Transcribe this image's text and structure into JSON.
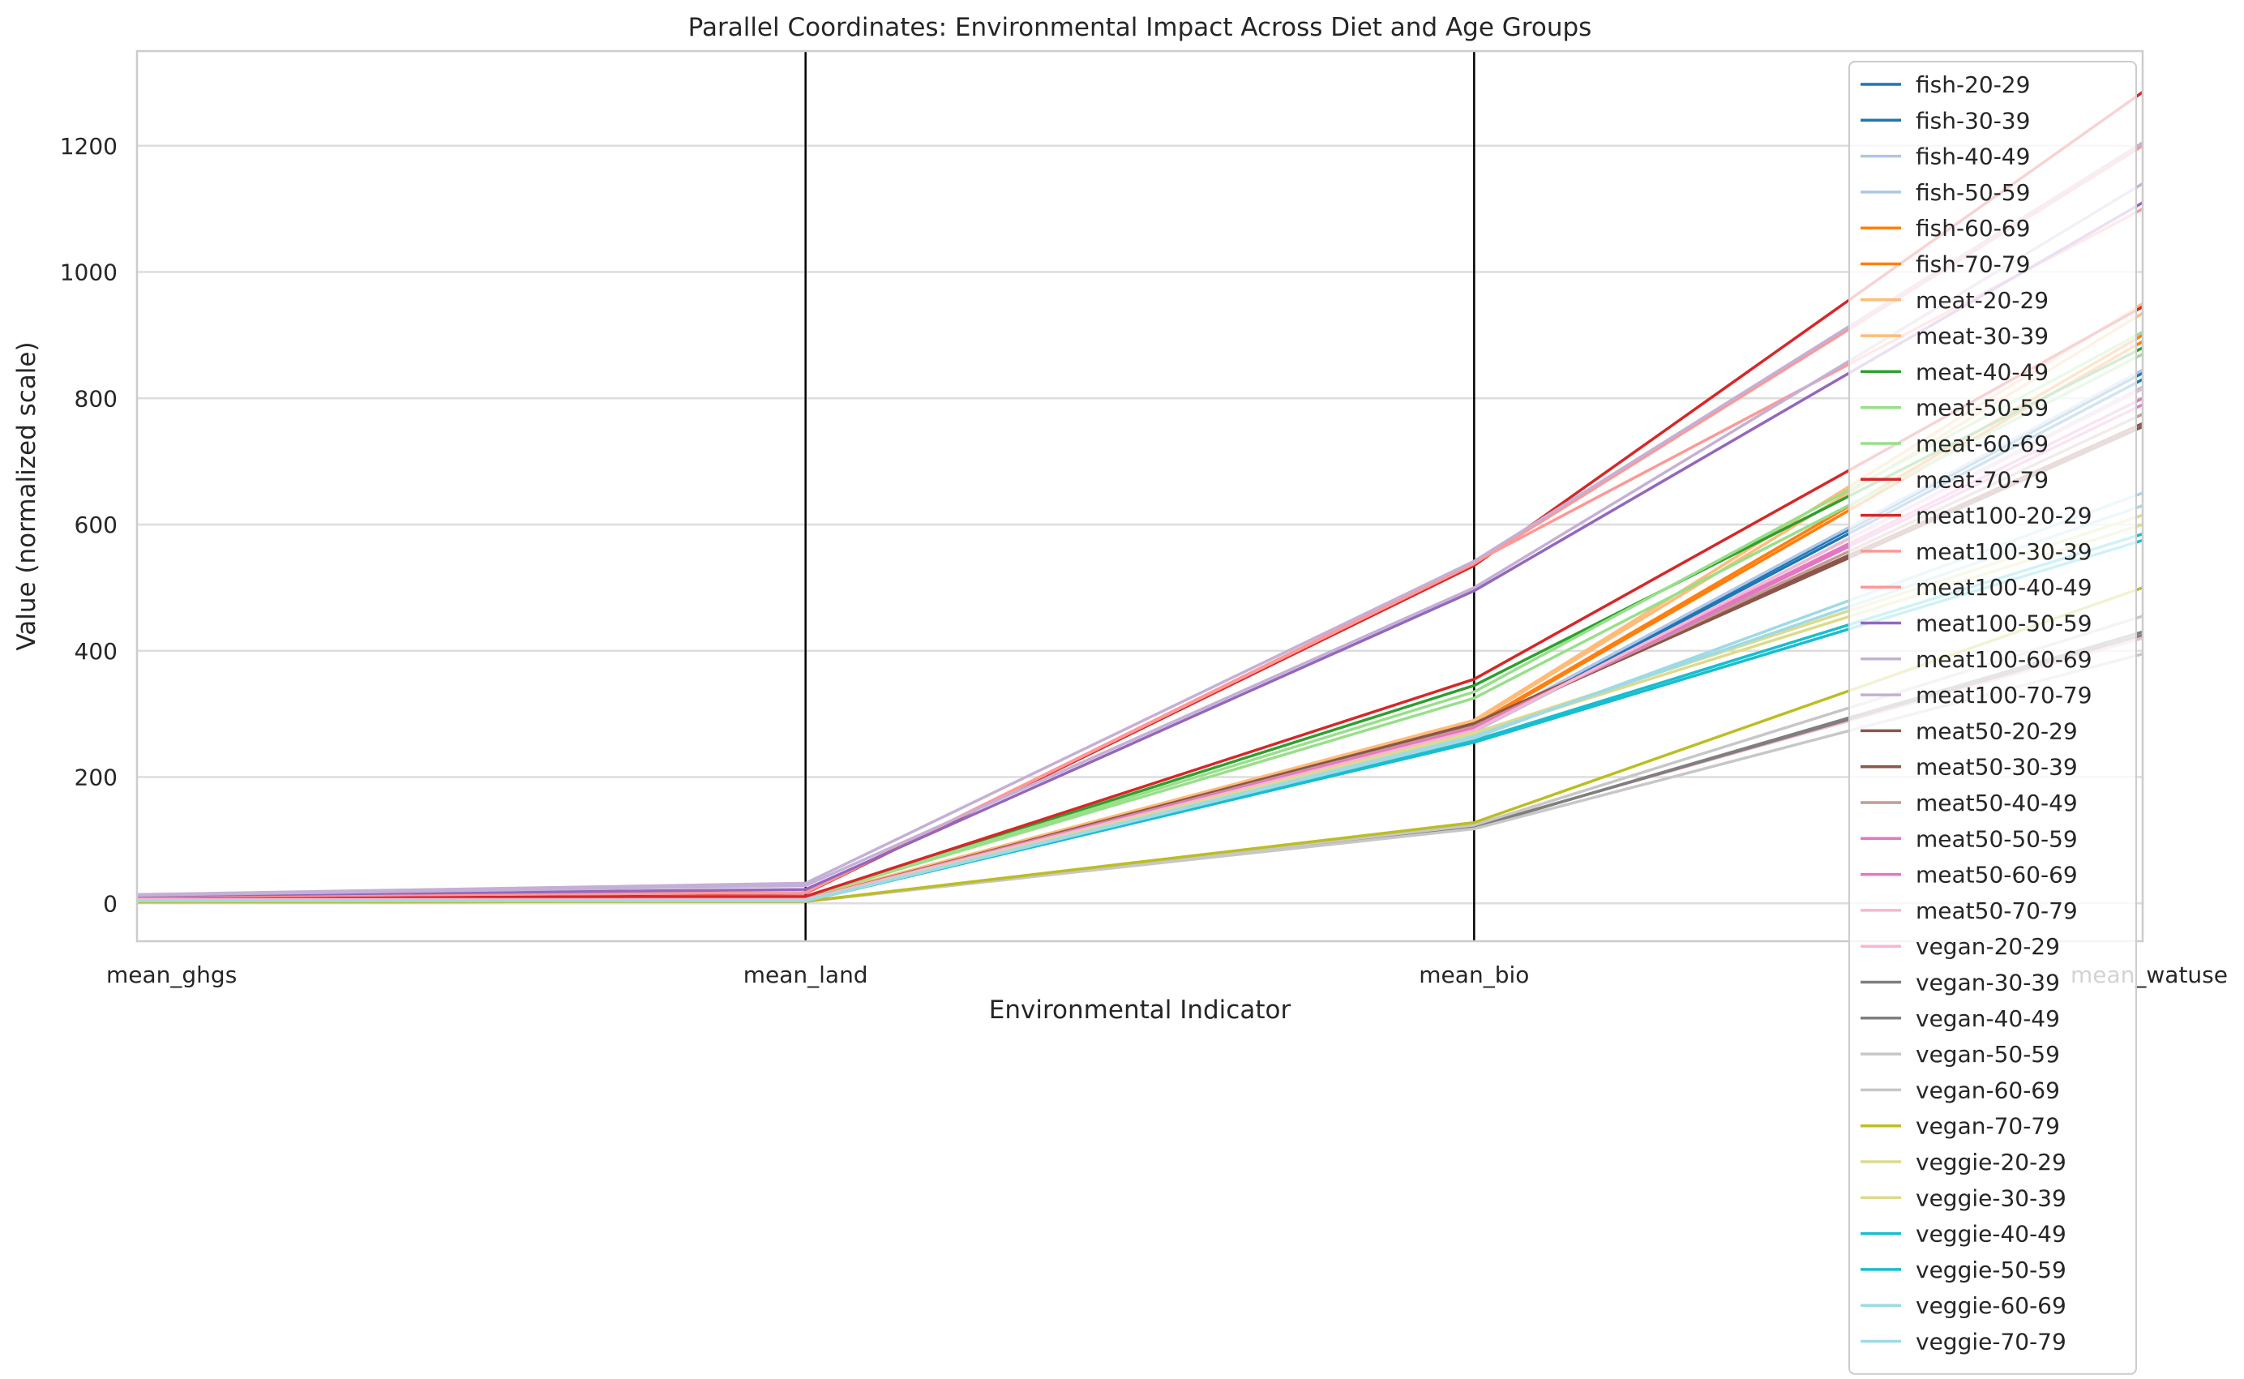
{
  "chart_data": {
    "type": "line",
    "subtype": "parallel-coordinates",
    "title": "Parallel Coordinates: Environmental Impact Across Diet and Age Groups",
    "xlabel": "Environmental Indicator",
    "ylabel": "Value (normalized scale)",
    "categories": [
      "mean_ghgs",
      "mean_land",
      "mean_bio",
      "mean_watuse"
    ],
    "ylim": [
      -60,
      1350
    ],
    "yticks": [
      0,
      200,
      400,
      600,
      800,
      1000,
      1200
    ],
    "grid": true,
    "legend_position": "right",
    "series": [
      {
        "name": "fish-20-29",
        "color": "#1f77b4",
        "values": [
          5,
          4,
          275,
          840
        ]
      },
      {
        "name": "fish-30-39",
        "color": "#1f77b4",
        "values": [
          5,
          4,
          274,
          830
        ]
      },
      {
        "name": "fish-40-49",
        "color": "#aec7e8",
        "values": [
          5,
          4,
          277,
          845
        ]
      },
      {
        "name": "fish-50-59",
        "color": "#aec7e8",
        "values": [
          5,
          4,
          272,
          818
        ]
      },
      {
        "name": "fish-60-69",
        "color": "#ff7f0e",
        "values": [
          5,
          4,
          283,
          900
        ]
      },
      {
        "name": "fish-70-79",
        "color": "#ff7f0e",
        "values": [
          5,
          4,
          281,
          890
        ]
      },
      {
        "name": "meat-20-29",
        "color": "#ffbb78",
        "values": [
          7,
          8,
          290,
          950
        ]
      },
      {
        "name": "meat-30-39",
        "color": "#ffbb78",
        "values": [
          7,
          8,
          288,
          935
        ]
      },
      {
        "name": "meat-40-49",
        "color": "#2ca02c",
        "values": [
          8,
          10,
          345,
          880
        ]
      },
      {
        "name": "meat-50-59",
        "color": "#98df8a",
        "values": [
          8,
          10,
          335,
          905
        ]
      },
      {
        "name": "meat-60-69",
        "color": "#98df8a",
        "values": [
          8,
          10,
          325,
          870
        ]
      },
      {
        "name": "meat-70-79",
        "color": "#d62728",
        "values": [
          9,
          11,
          355,
          945
        ]
      },
      {
        "name": "meat100-20-29",
        "color": "#d62728",
        "values": [
          11,
          16,
          535,
          1285
        ]
      },
      {
        "name": "meat100-30-39",
        "color": "#ff9896",
        "values": [
          11,
          17,
          540,
          1100
        ]
      },
      {
        "name": "meat100-40-49",
        "color": "#ff9896",
        "values": [
          11,
          17,
          538,
          1200
        ]
      },
      {
        "name": "meat100-50-59",
        "color": "#9467bd",
        "values": [
          12,
          22,
          495,
          1110
        ]
      },
      {
        "name": "meat100-60-69",
        "color": "#c5b0d5",
        "values": [
          13,
          28,
          500,
          1140
        ]
      },
      {
        "name": "meat100-70-79",
        "color": "#c5b0d5",
        "values": [
          14,
          32,
          542,
          1205
        ]
      },
      {
        "name": "meat50-20-29",
        "color": "#8c564b",
        "values": [
          6,
          6,
          285,
          760
        ]
      },
      {
        "name": "meat50-30-39",
        "color": "#8c564b",
        "values": [
          6,
          6,
          282,
          755
        ]
      },
      {
        "name": "meat50-40-49",
        "color": "#c49c94",
        "values": [
          6,
          6,
          280,
          775
        ]
      },
      {
        "name": "meat50-50-59",
        "color": "#e377c2",
        "values": [
          6,
          6,
          278,
          790
        ]
      },
      {
        "name": "meat50-60-69",
        "color": "#e377c2",
        "values": [
          6,
          6,
          276,
          800
        ]
      },
      {
        "name": "meat50-70-79",
        "color": "#f7b6d2",
        "values": [
          6,
          6,
          274,
          815
        ]
      },
      {
        "name": "vegan-20-29",
        "color": "#f7b6d2",
        "values": [
          2,
          3,
          122,
          420
        ]
      },
      {
        "name": "vegan-30-39",
        "color": "#7f7f7f",
        "values": [
          2,
          3,
          120,
          430
        ]
      },
      {
        "name": "vegan-40-49",
        "color": "#7f7f7f",
        "values": [
          2,
          3,
          121,
          425
        ]
      },
      {
        "name": "vegan-50-59",
        "color": "#c7c7c7",
        "values": [
          2,
          3,
          118,
          395
        ]
      },
      {
        "name": "vegan-60-69",
        "color": "#c7c7c7",
        "values": [
          2,
          3,
          124,
          455
        ]
      },
      {
        "name": "vegan-70-79",
        "color": "#bcbd22",
        "values": [
          2,
          3,
          128,
          500
        ]
      },
      {
        "name": "veggie-20-29",
        "color": "#dbdb8d",
        "values": [
          4,
          4,
          270,
          615
        ]
      },
      {
        "name": "veggie-30-39",
        "color": "#dbdb8d",
        "values": [
          4,
          4,
          268,
          600
        ]
      },
      {
        "name": "veggie-40-49",
        "color": "#17becf",
        "values": [
          4,
          4,
          255,
          575
        ]
      },
      {
        "name": "veggie-50-59",
        "color": "#17becf",
        "values": [
          4,
          4,
          258,
          585
        ]
      },
      {
        "name": "veggie-60-69",
        "color": "#9edae5",
        "values": [
          4,
          4,
          262,
          650
        ]
      },
      {
        "name": "veggie-70-79",
        "color": "#9edae5",
        "values": [
          4,
          4,
          265,
          630
        ]
      }
    ]
  }
}
